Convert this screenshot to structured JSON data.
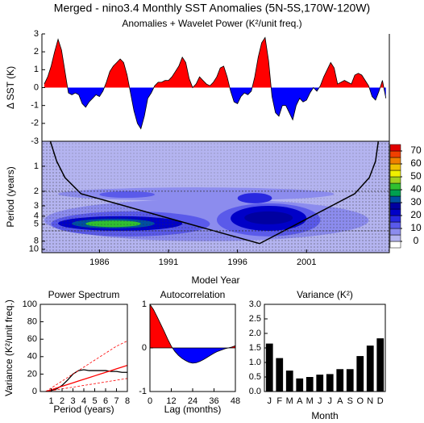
{
  "chart_data": [
    {
      "type": "area",
      "title": "Merged - nino3.4 Monthly SST Anomalies (5N-5S,170W-120W)",
      "subtitle": "Anomalies + Wavelet Power (K²/unit freq.)",
      "ylabel": "Δ SST (K)",
      "xlim": [
        1981.83,
        2007.0
      ],
      "ylim": [
        -3,
        3
      ],
      "yticks": [
        -3,
        -2,
        -1,
        0,
        1,
        2,
        3
      ],
      "above_color": "#ff0000",
      "below_color": "#0000ff",
      "x": [
        1982,
        1982.25,
        1982.5,
        1982.75,
        1983,
        1983.25,
        1983.5,
        1983.75,
        1984,
        1984.25,
        1984.5,
        1984.75,
        1985,
        1985.25,
        1985.5,
        1985.75,
        1986,
        1986.25,
        1986.5,
        1986.75,
        1987,
        1987.25,
        1987.5,
        1987.75,
        1988,
        1988.25,
        1988.5,
        1988.75,
        1989,
        1989.25,
        1989.5,
        1989.75,
        1990,
        1990.25,
        1990.5,
        1990.75,
        1991,
        1991.25,
        1991.5,
        1991.75,
        1992,
        1992.25,
        1992.5,
        1992.75,
        1993,
        1993.25,
        1993.5,
        1993.75,
        1994,
        1994.25,
        1994.5,
        1994.75,
        1995,
        1995.25,
        1995.5,
        1995.75,
        1996,
        1996.25,
        1996.5,
        1996.75,
        1997,
        1997.25,
        1997.5,
        1997.75,
        1998,
        1998.25,
        1998.5,
        1998.75,
        1999,
        1999.25,
        1999.5,
        1999.75,
        2000,
        2000.25,
        2000.5,
        2000.75,
        2001,
        2001.25,
        2001.5,
        2001.75,
        2002,
        2002.25,
        2002.5,
        2002.75,
        2003,
        2003.25,
        2003.5,
        2003.75,
        2004,
        2004.25,
        2004.5,
        2004.75,
        2005,
        2005.25,
        2005.5,
        2005.75,
        2006,
        2006.25,
        2006.5,
        2006.75
      ],
      "values": [
        0.2,
        0.6,
        1.2,
        2.0,
        2.7,
        2.1,
        0.9,
        -0.3,
        -0.4,
        -0.3,
        -0.4,
        -0.9,
        -1.1,
        -0.8,
        -0.6,
        -0.4,
        -0.5,
        -0.2,
        0.3,
        0.9,
        1.2,
        1.4,
        1.6,
        1.4,
        0.7,
        -0.3,
        -1.3,
        -2.0,
        -2.3,
        -1.6,
        -0.6,
        -0.3,
        0.1,
        0.3,
        0.3,
        0.4,
        0.4,
        0.6,
        0.9,
        1.2,
        1.7,
        1.4,
        0.5,
        0.0,
        0.2,
        0.6,
        0.4,
        0.2,
        0.1,
        0.3,
        0.6,
        1.1,
        1.2,
        0.6,
        -0.2,
        -0.8,
        -0.9,
        -0.5,
        -0.3,
        -0.4,
        -0.2,
        0.6,
        1.7,
        2.5,
        2.8,
        1.5,
        -0.5,
        -1.4,
        -1.6,
        -1.0,
        -1.0,
        -1.4,
        -1.8,
        -1.0,
        -0.6,
        -0.8,
        -0.7,
        -0.3,
        0.0,
        -0.2,
        0.1,
        0.6,
        1.0,
        1.4,
        1.1,
        0.2,
        0.3,
        0.4,
        0.3,
        0.2,
        0.7,
        0.8,
        0.7,
        0.4,
        0.1,
        -0.5,
        -0.7,
        -0.2,
        0.4,
        -0.6
      ]
    },
    {
      "type": "wavelet",
      "xlabel": "Model Year",
      "ylabel": "Period (years)",
      "log_scale": true,
      "xlim": [
        1981.83,
        2007.0
      ],
      "xticks": [
        1986,
        1991,
        1996,
        2001
      ],
      "ylim": [
        0.5,
        11
      ],
      "yticks": [
        1,
        2,
        3,
        4,
        5,
        8,
        10
      ],
      "reference_periods": [
        2,
        6
      ],
      "coi": {
        "x": [
          1982.44,
          1982.9,
          1983.5,
          1984.66,
          1997.6,
          2004.5,
          2005.55,
          2006.0,
          2006.2
        ],
        "values": [
          0.5,
          0.87,
          1.37,
          2.14,
          8.55,
          2.14,
          1.37,
          0.87,
          0.5
        ]
      },
      "regions": [
        {
          "year": [
            1982,
            2005.5
          ],
          "period": [
            2.5,
            8
          ],
          "level": 5
        },
        {
          "year": [
            1983,
            2003
          ],
          "period": [
            1.8,
            2.6
          ],
          "level": 5
        },
        {
          "year": [
            1982.5,
            1994
          ],
          "period": [
            3.5,
            7
          ],
          "level": 10
        },
        {
          "year": [
            1994.5,
            2002
          ],
          "period": [
            2.8,
            7
          ],
          "level": 10
        },
        {
          "year": [
            1986,
            1990
          ],
          "period": [
            2,
            2.4
          ],
          "level": 10
        },
        {
          "year": [
            1996,
            1998.5
          ],
          "period": [
            2.1,
            2.8
          ],
          "level": 15
        },
        {
          "year": [
            1983,
            1992
          ],
          "period": [
            4,
            6
          ],
          "level": 20
        },
        {
          "year": [
            1995.5,
            2001
          ],
          "period": [
            3,
            6
          ],
          "level": 20
        },
        {
          "year": [
            1996.5,
            2000
          ],
          "period": [
            3.5,
            5
          ],
          "level": 25
        },
        {
          "year": [
            1984,
            1990
          ],
          "period": [
            4.3,
            5.6
          ],
          "level": 30
        },
        {
          "year": [
            1985,
            1989
          ],
          "period": [
            4.5,
            5.4
          ],
          "level": 40
        }
      ],
      "colorbar": {
        "levels": [
          0,
          5,
          10,
          15,
          20,
          25,
          30,
          35,
          40,
          45,
          50,
          55,
          60,
          65,
          70
        ],
        "colors": [
          "#ffffff",
          "#b4b4f0",
          "#8c8cee",
          "#5a5aea",
          "#2828e0",
          "#0000c8",
          "#0000a0",
          "#0050a0",
          "#00a050",
          "#30c030",
          "#a0d020",
          "#f0f000",
          "#f0c000",
          "#f08000",
          "#f04000",
          "#e00000"
        ],
        "ticks": [
          0,
          10,
          20,
          30,
          40,
          50,
          60,
          70
        ]
      }
    },
    {
      "type": "line",
      "title": "Power Spectrum",
      "xlabel": "Period (years)",
      "ylabel": "Variance (K²/unit freq.)",
      "xlim": [
        0,
        8
      ],
      "xticks": [
        1,
        2,
        3,
        4,
        5,
        6,
        7,
        8
      ],
      "ylim": [
        0,
        100
      ],
      "yticks": [
        0,
        20,
        40,
        60,
        80,
        100
      ],
      "x": [
        0.5,
        1,
        1.5,
        2,
        2.5,
        3,
        3.5,
        4,
        4.5,
        5,
        5.5,
        6,
        6.5,
        7,
        7.5,
        8
      ],
      "series": [
        {
          "color": "#000000",
          "values": [
            0,
            1,
            3,
            7,
            13,
            20,
            24,
            25,
            24,
            24,
            24,
            24,
            23,
            23,
            22,
            22
          ]
        },
        {
          "color": "#ff0000",
          "values": [
            0,
            2,
            4,
            6,
            8,
            10,
            12,
            14,
            16,
            18,
            20,
            22,
            24,
            26,
            28,
            30
          ]
        },
        {
          "color": "#ff0000",
          "dashed": true,
          "values": [
            0,
            4,
            8,
            12,
            16,
            20,
            24,
            28,
            32,
            36,
            40,
            44,
            48,
            52,
            55,
            58
          ]
        },
        {
          "color": "#ff0000",
          "dashed": true,
          "values": [
            0,
            1,
            2,
            3,
            4,
            5,
            6,
            7,
            8,
            9,
            10,
            11,
            12,
            13,
            14,
            15
          ]
        }
      ]
    },
    {
      "type": "area",
      "title": "Autocorrelation",
      "xlabel": "Lag (months)",
      "xlim": [
        0,
        48
      ],
      "xticks": [
        0,
        12,
        24,
        36,
        48
      ],
      "ylim": [
        -1,
        1
      ],
      "yticks": [
        -1,
        0,
        1
      ],
      "above_color": "#ff0000",
      "below_color": "#0000ff",
      "x": [
        0,
        2,
        4,
        6,
        8,
        10,
        12,
        14,
        16,
        18,
        20,
        22,
        24,
        26,
        28,
        30,
        32,
        34,
        36,
        38,
        40,
        42,
        44,
        46,
        48
      ],
      "values": [
        1.0,
        0.88,
        0.72,
        0.55,
        0.38,
        0.2,
        0.04,
        -0.08,
        -0.17,
        -0.24,
        -0.29,
        -0.33,
        -0.35,
        -0.34,
        -0.31,
        -0.27,
        -0.22,
        -0.17,
        -0.12,
        -0.08,
        -0.05,
        -0.02,
        0.0,
        0.02,
        0.05
      ]
    },
    {
      "type": "bar",
      "title": "Variance (K²)",
      "xlabel": "Month",
      "color": "#000000",
      "categories": [
        "J",
        "F",
        "M",
        "A",
        "M",
        "J",
        "J",
        "A",
        "S",
        "O",
        "N",
        "D"
      ],
      "values": [
        1.65,
        1.15,
        0.72,
        0.45,
        0.5,
        0.58,
        0.6,
        0.77,
        0.77,
        1.22,
        1.58,
        1.83
      ],
      "ylim": [
        0,
        3.0
      ],
      "yticks": [
        {
          "value": 0,
          "label": "0.0"
        },
        {
          "value": 0.5,
          "label": "0.5"
        },
        {
          "value": 1.0,
          "label": "1.0"
        },
        {
          "value": 1.5,
          "label": "1.5"
        },
        {
          "value": 2.0,
          "label": "2.0"
        },
        {
          "value": 2.5,
          "label": "2.5"
        },
        {
          "value": 3.0,
          "label": "3.0"
        }
      ]
    }
  ]
}
